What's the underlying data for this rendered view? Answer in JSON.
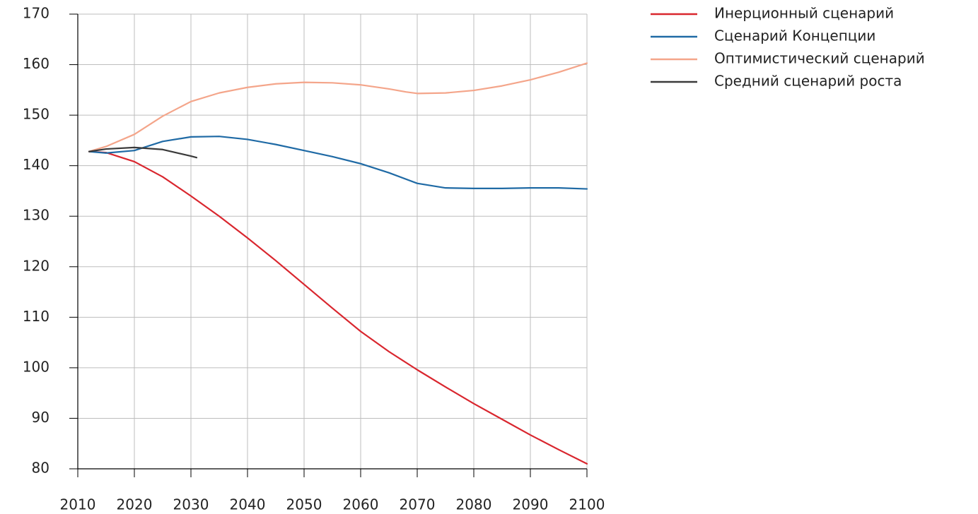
{
  "chart_data": {
    "type": "line",
    "xlim": [
      2010,
      2100
    ],
    "xticks": [
      2010,
      2020,
      2030,
      2040,
      2050,
      2060,
      2070,
      2080,
      2090,
      2100
    ],
    "ylim": [
      80,
      170
    ],
    "yticks": [
      80,
      90,
      100,
      110,
      120,
      130,
      140,
      150,
      160,
      170
    ],
    "grid": true,
    "legend": "right",
    "series": [
      {
        "name": "Инерционный сценарий",
        "color": "#d9262e",
        "x": [
          2012,
          2015,
          2020,
          2025,
          2030,
          2035,
          2040,
          2045,
          2050,
          2055,
          2060,
          2065,
          2070,
          2075,
          2080,
          2085,
          2090,
          2095,
          2100
        ],
        "values": [
          142.8,
          142.6,
          140.8,
          137.8,
          134.0,
          130.0,
          125.7,
          121.2,
          116.5,
          111.8,
          107.2,
          103.2,
          99.6,
          96.2,
          92.9,
          89.8,
          86.7,
          83.8,
          81.0
        ]
      },
      {
        "name": "Сценарий Концепции",
        "color": "#1f6aa5",
        "x": [
          2012,
          2015,
          2020,
          2025,
          2030,
          2035,
          2040,
          2045,
          2050,
          2055,
          2060,
          2065,
          2070,
          2075,
          2080,
          2085,
          2090,
          2095,
          2100
        ],
        "values": [
          142.8,
          142.5,
          143.0,
          144.8,
          145.7,
          145.8,
          145.2,
          144.2,
          143.0,
          141.8,
          140.4,
          138.6,
          136.5,
          135.6,
          135.5,
          135.5,
          135.6,
          135.6,
          135.4
        ]
      },
      {
        "name": "Оптимистический сценарий",
        "color": "#f4a58a",
        "x": [
          2012,
          2015,
          2020,
          2025,
          2030,
          2035,
          2040,
          2045,
          2050,
          2055,
          2060,
          2065,
          2068,
          2070,
          2075,
          2080,
          2085,
          2090,
          2095,
          2100
        ],
        "values": [
          142.8,
          143.8,
          146.2,
          149.8,
          152.7,
          154.4,
          155.5,
          156.2,
          156.5,
          156.4,
          156.0,
          155.2,
          154.6,
          154.3,
          154.4,
          154.9,
          155.8,
          157.0,
          158.5,
          160.3
        ]
      },
      {
        "name": "Средний сценарий роста",
        "color": "#3a3a3a",
        "x": [
          2012,
          2015,
          2020,
          2025,
          2030,
          2031
        ],
        "values": [
          142.8,
          143.3,
          143.6,
          143.2,
          141.9,
          141.6
        ]
      }
    ]
  }
}
